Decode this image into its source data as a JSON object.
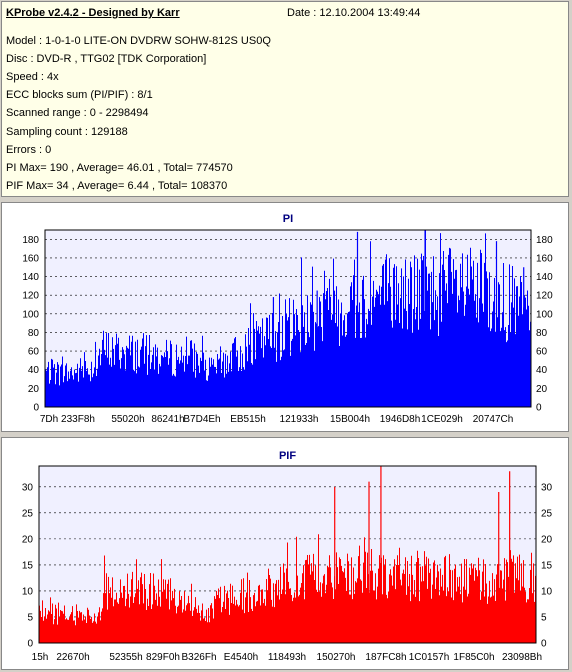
{
  "header": {
    "app_title": "KProbe v2.4.2 - Designed by Karr",
    "date": "Date : 12.10.2004 13:49:44"
  },
  "info_lines": [
    "Model : 1-0-1-0 LITE-ON DVDRW SOHW-812S  US0Q",
    "Disc : DVD-R , TTG02 [TDK Corporation]",
    "Speed : 4x",
    "ECC blocks sum (PI/PIF) : 8/1",
    "Scanned range : 0 - 2298494",
    "Sampling count : 129188",
    "Errors : 0",
    "PI Max= 190 , Average= 46.01 , Total= 774570",
    "PIF Max= 34 , Average= 6.44 , Total= 108370"
  ],
  "colors": {
    "pi": "#0000ff",
    "pif": "#ff0000",
    "plot_bg": "#f0f0ff",
    "title": "#000080"
  },
  "chart_data": [
    {
      "type": "bar",
      "title": "PI",
      "ylim": [
        0,
        190
      ],
      "yticks": [
        0,
        20,
        40,
        60,
        80,
        100,
        120,
        140,
        160,
        180
      ],
      "xtick_labels": [
        "7Dh",
        "233F8h",
        "55020h",
        "86241h",
        "B7D4Eh",
        "EB515h",
        "121933h",
        "15B004h",
        "1946D8h",
        "1CE029h",
        "20747Ch"
      ],
      "profile": [
        [
          0,
          42
        ],
        [
          0.05,
          40
        ],
        [
          0.1,
          48
        ],
        [
          0.12,
          68
        ],
        [
          0.15,
          66
        ],
        [
          0.2,
          64
        ],
        [
          0.25,
          58
        ],
        [
          0.3,
          60
        ],
        [
          0.34,
          42
        ],
        [
          0.36,
          52
        ],
        [
          0.4,
          64
        ],
        [
          0.45,
          80
        ],
        [
          0.5,
          95
        ],
        [
          0.55,
          108
        ],
        [
          0.6,
          118
        ],
        [
          0.65,
          126
        ],
        [
          0.7,
          133
        ],
        [
          0.75,
          135
        ],
        [
          0.8,
          138
        ],
        [
          0.85,
          140
        ],
        [
          0.9,
          135
        ],
        [
          0.95,
          125
        ],
        [
          1.0,
          112
        ]
      ],
      "peaks": [
        [
          0.643,
          188
        ],
        [
          0.782,
          190
        ],
        [
          0.929,
          178
        ],
        [
          0.985,
          150
        ],
        [
          0.47,
          118
        ],
        [
          0.56,
          125
        ]
      ],
      "grid": true,
      "legend": "none"
    },
    {
      "type": "bar",
      "title": "PIF",
      "ylim": [
        0,
        34
      ],
      "yticks": [
        0,
        5,
        10,
        15,
        20,
        25,
        30
      ],
      "xtick_labels": [
        "15h",
        "22670h",
        "52355h",
        "829F0h",
        "B326Fh",
        "E4540h",
        "118493h",
        "150270h",
        "187FC8h",
        "1C0157h",
        "1F85C0h",
        "23098Bh"
      ],
      "profile": [
        [
          0,
          7
        ],
        [
          0.05,
          6
        ],
        [
          0.12,
          6
        ],
        [
          0.13,
          11
        ],
        [
          0.2,
          11
        ],
        [
          0.3,
          10
        ],
        [
          0.34,
          6
        ],
        [
          0.36,
          9
        ],
        [
          0.45,
          11
        ],
        [
          0.5,
          13
        ],
        [
          0.55,
          14
        ],
        [
          0.6,
          15
        ],
        [
          0.7,
          15
        ],
        [
          0.8,
          14
        ],
        [
          0.9,
          13
        ],
        [
          1.0,
          14
        ]
      ],
      "peaks": [
        [
          0.688,
          34
        ],
        [
          0.947,
          33
        ],
        [
          0.664,
          31
        ],
        [
          0.595,
          30
        ],
        [
          0.925,
          29
        ]
      ],
      "grid": true,
      "legend": "none"
    }
  ]
}
